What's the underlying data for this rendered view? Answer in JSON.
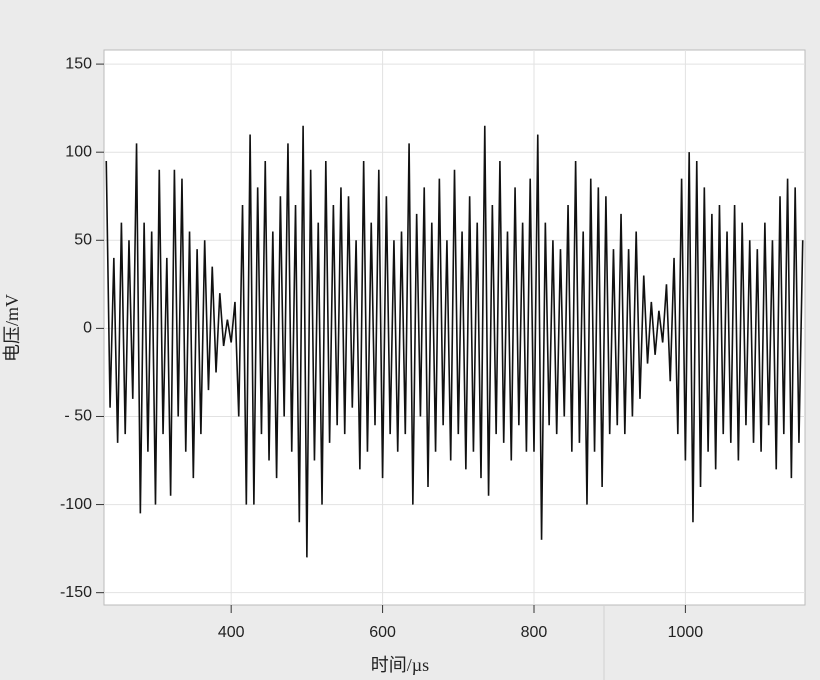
{
  "chart_data": {
    "type": "line",
    "x_label": "时间/µs",
    "y_label": "电压/mV",
    "xlim": [
      232,
      1158
    ],
    "ylim": [
      -157,
      158
    ],
    "xticks": [
      400,
      600,
      800,
      1000
    ],
    "yticks": [
      150,
      100,
      50,
      0,
      {
        "value": -50,
        "label": "- 50"
      },
      -100,
      -150
    ],
    "grid": true,
    "x_start": 235,
    "x_step": 5,
    "series": [
      {
        "color": "#111111",
        "values": [
          95,
          -45,
          40,
          -65,
          60,
          -60,
          50,
          -40,
          105,
          -105,
          60,
          -70,
          55,
          -100,
          90,
          -60,
          40,
          -95,
          90,
          -50,
          85,
          -70,
          55,
          -85,
          45,
          -60,
          50,
          -35,
          35,
          -25,
          20,
          -10,
          5,
          -8,
          15,
          -50,
          70,
          -100,
          110,
          -100,
          80,
          -60,
          95,
          -75,
          55,
          -85,
          75,
          -50,
          105,
          -70,
          70,
          -110,
          115,
          -130,
          90,
          -75,
          60,
          -100,
          95,
          -65,
          70,
          -55,
          80,
          -60,
          75,
          -45,
          50,
          -80,
          95,
          -70,
          60,
          -55,
          90,
          -85,
          75,
          -60,
          50,
          -70,
          55,
          -60,
          105,
          -100,
          65,
          -50,
          80,
          -90,
          60,
          -70,
          85,
          -55,
          50,
          -75,
          90,
          -60,
          55,
          -80,
          75,
          -70,
          60,
          -85,
          115,
          -95,
          70,
          -60,
          95,
          -65,
          55,
          -75,
          80,
          -55,
          60,
          -70,
          85,
          -70,
          110,
          -120,
          60,
          -55,
          50,
          -60,
          45,
          -50,
          70,
          -70,
          95,
          -65,
          55,
          -100,
          85,
          -70,
          80,
          -90,
          75,
          -60,
          45,
          -55,
          65,
          -60,
          45,
          -50,
          55,
          -40,
          30,
          -20,
          15,
          -15,
          10,
          -8,
          25,
          -30,
          40,
          -60,
          85,
          -75,
          100,
          -110,
          95,
          -90,
          80,
          -70,
          65,
          -80,
          70,
          -60,
          55,
          -65,
          70,
          -75,
          60,
          -55,
          50,
          -65,
          45,
          -70,
          60,
          -55,
          50,
          -80,
          75,
          -60,
          85,
          -85,
          80,
          -65,
          50
        ]
      }
    ]
  }
}
